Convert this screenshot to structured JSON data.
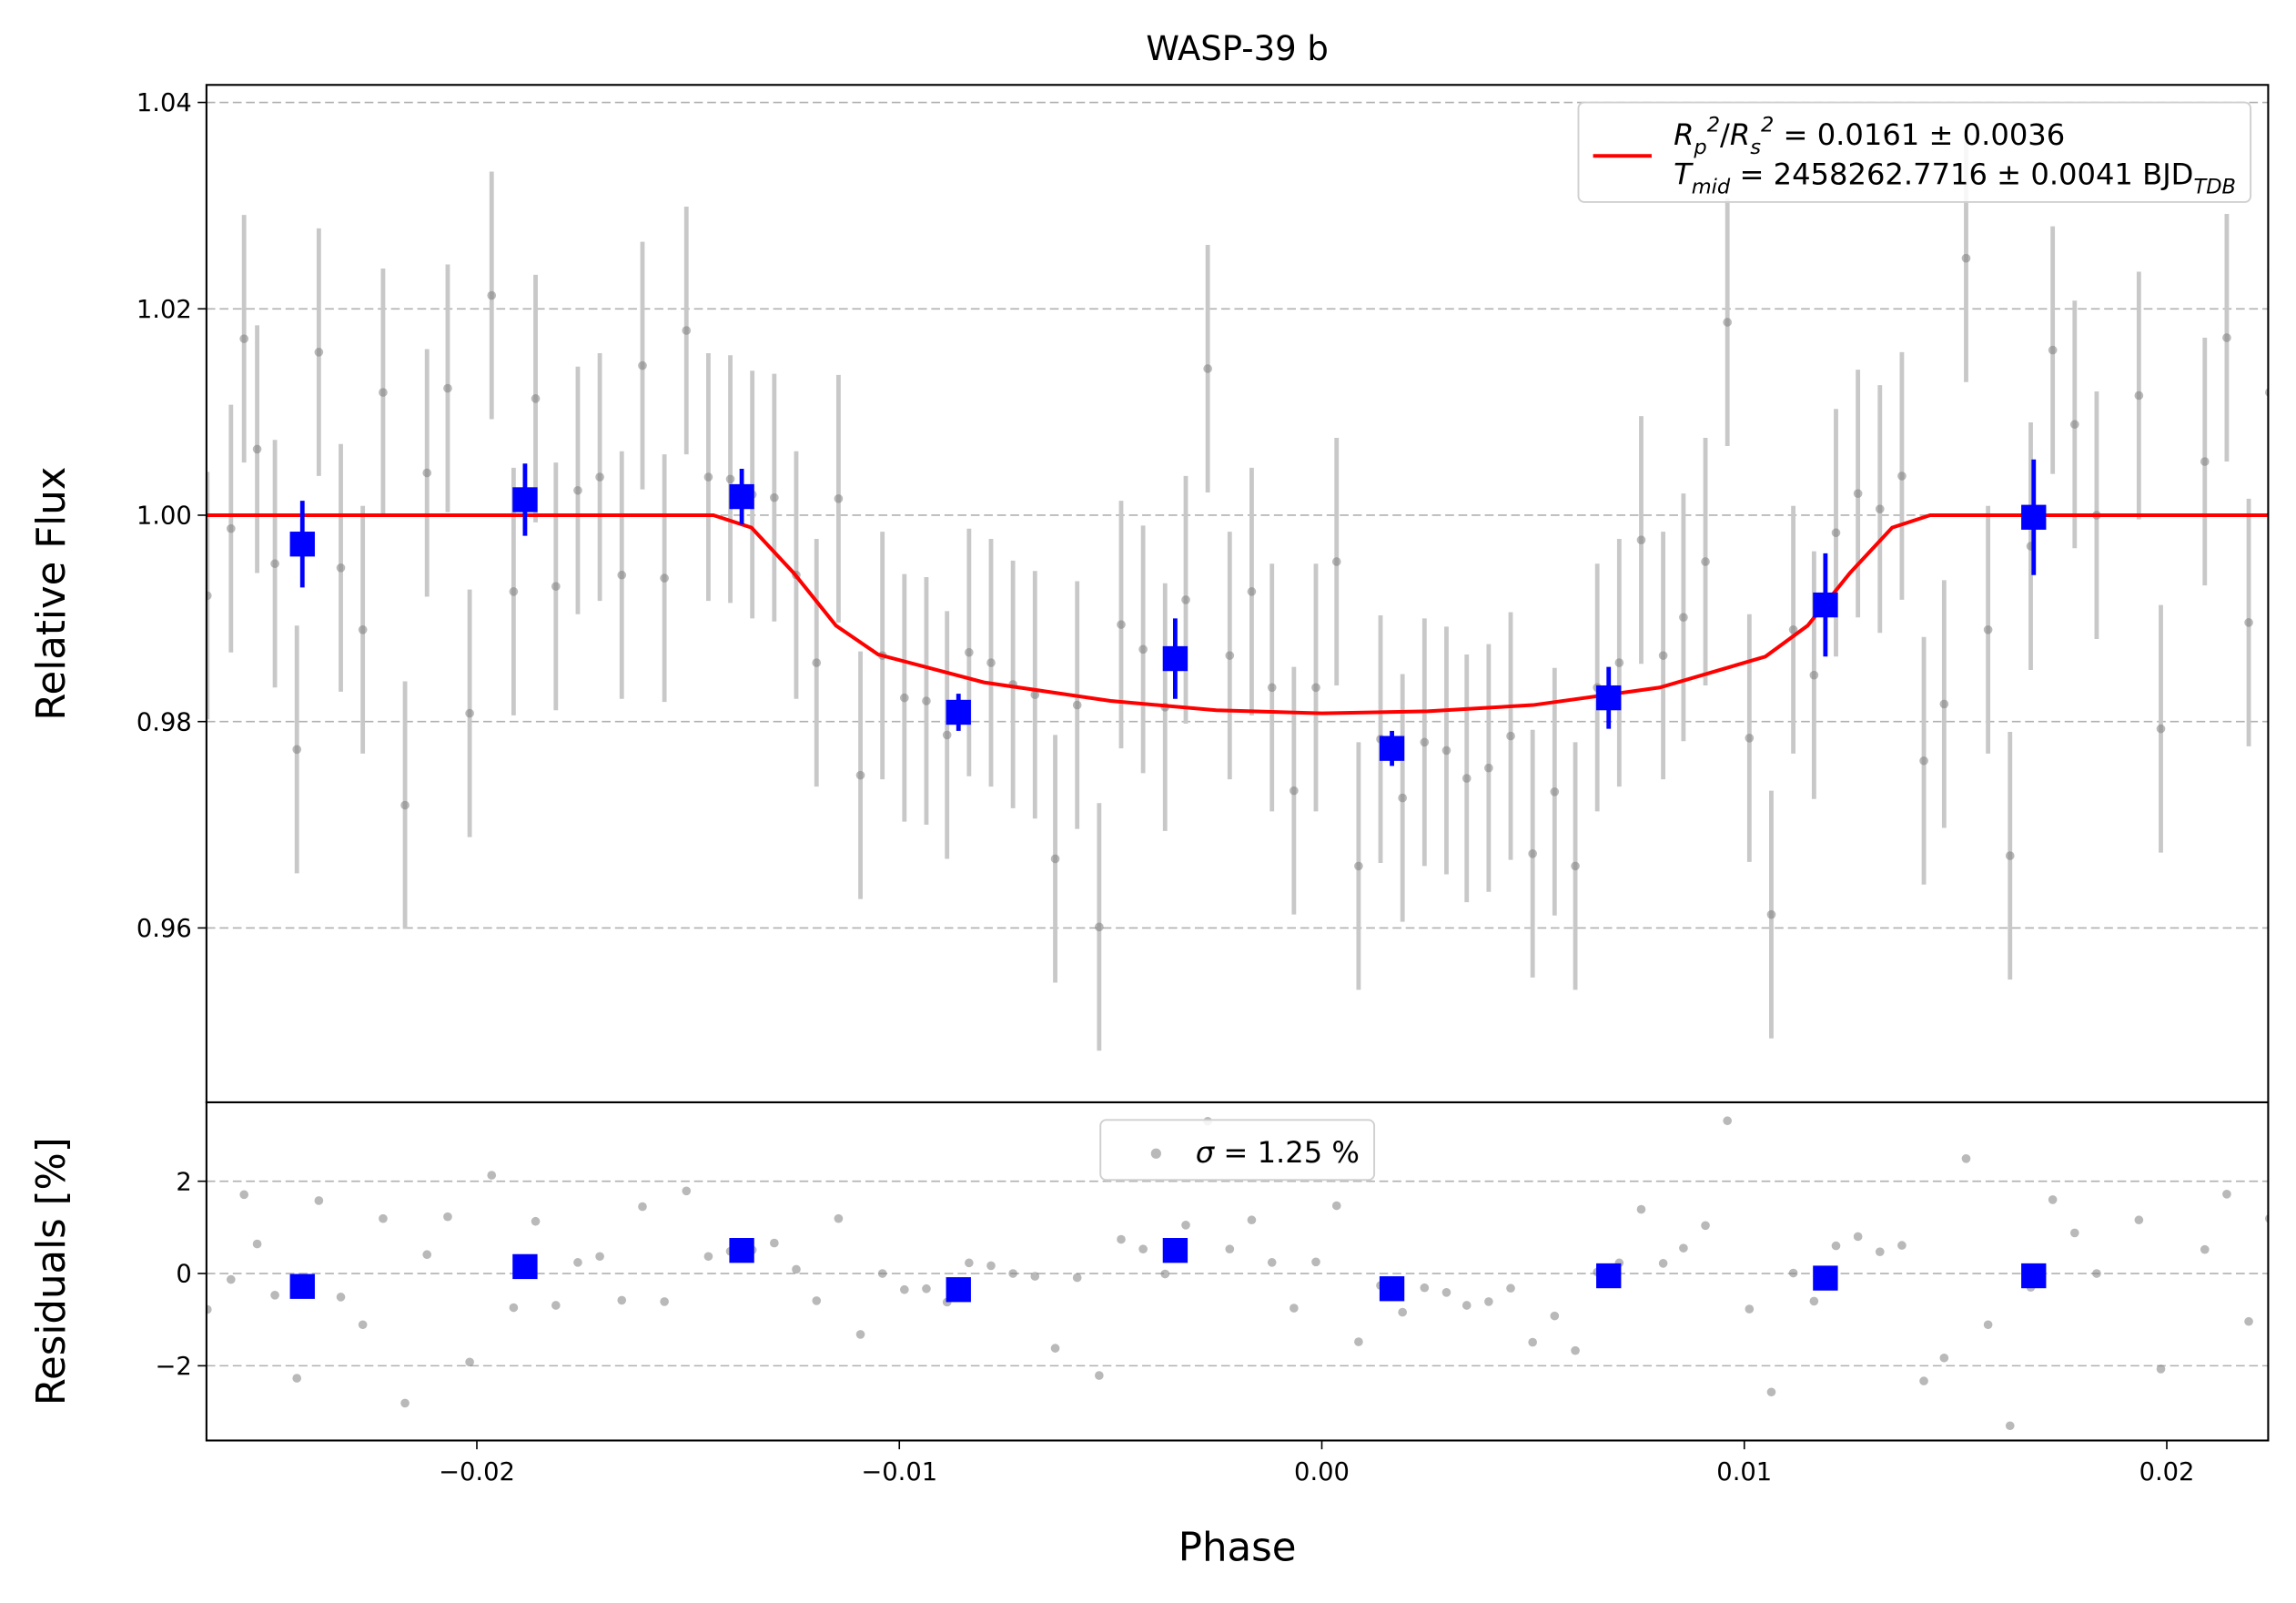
{
  "chart_data": [
    {
      "type": "scatter",
      "title": "WASP-39 b",
      "y_label": "Relative Flux",
      "xlim": [
        -0.0264,
        0.0224
      ],
      "ylim": [
        0.9431,
        1.0417
      ],
      "yticks": [
        0.96,
        0.98,
        {
          "value": 1,
          "label": "1.00"
        },
        1.02,
        1.04
      ],
      "grid": true,
      "legend": "upper right",
      "series": [
        {
          "style": "errorbar",
          "marker": "circle",
          "color": "#808080",
          "errcolor": "#c8c8c8",
          "x": [
            -0.02638,
            -0.02582,
            -0.02551,
            -0.0252,
            -0.02478,
            -0.02426,
            -0.02374,
            -0.02322,
            -0.0227,
            -0.02222,
            -0.0217,
            -0.02118,
            -0.02069,
            -0.02017,
            -0.01965,
            -0.01913,
            -0.01861,
            -0.01813,
            -0.01761,
            -0.01709,
            -0.01657,
            -0.01608,
            -0.01556,
            -0.01504,
            -0.01452,
            -0.014,
            -0.01348,
            -0.01296,
            -0.01244,
            -0.01196,
            -0.01144,
            -0.01092,
            -0.0104,
            -0.00988,
            -0.00936,
            -0.00887,
            -0.00835,
            -0.00783,
            -0.00731,
            -0.00679,
            -0.00631,
            -0.00579,
            -0.00527,
            -0.00475,
            -0.00423,
            -0.00371,
            -0.00322,
            -0.0027,
            -0.00218,
            -0.00166,
            -0.00118,
            -0.00066,
            -0.00014,
            0.00035,
            0.00087,
            0.00139,
            0.00191,
            0.00243,
            0.00295,
            0.00343,
            0.00395,
            0.00447,
            0.00499,
            0.00551,
            0.006,
            0.00652,
            0.00704,
            0.00756,
            0.00808,
            0.00856,
            0.00908,
            0.0096,
            0.01012,
            0.01064,
            0.01116,
            0.01165,
            0.01217,
            0.01269,
            0.01321,
            0.01373,
            0.01425,
            0.01473,
            0.01525,
            0.01577,
            0.01629,
            0.01678,
            0.0173,
            0.01782,
            0.01834,
            0.01934,
            0.01986,
            0.0209,
            0.02142,
            0.02194,
            0.02243
          ],
          "values": [
            0.9922,
            0.9987,
            1.0171,
            1.0064,
            0.9953,
            0.9773,
            1.0158,
            0.9949,
            0.9889,
            1.0119,
            0.9719,
            1.0041,
            1.0123,
            0.9808,
            1.0213,
            0.9926,
            1.0113,
            0.9931,
            1.0024,
            1.0037,
            0.9942,
            1.0145,
            0.9939,
            1.0179,
            1.0037,
            1.0035,
            1.002,
            1.0017,
            0.9942,
            0.9857,
            1.0016,
            0.9748,
            0.9864,
            0.9823,
            0.982,
            0.9787,
            0.9867,
            0.9857,
            0.9836,
            0.9826,
            0.9667,
            0.9816,
            0.9601,
            0.9894,
            0.987,
            0.9814,
            0.9918,
            1.0142,
            0.9864,
            0.9926,
            0.9833,
            0.9733,
            0.9833,
            0.9955,
            0.966,
            0.9783,
            0.9726,
            0.978,
            0.9772,
            0.9745,
            0.9755,
            0.9786,
            0.9672,
            0.9732,
            0.966,
            0.9833,
            0.9857,
            0.9976,
            0.9864,
            0.9901,
            0.9955,
            1.0187,
            0.9784,
            0.9613,
            0.9889,
            0.9845,
            0.9983,
            1.0021,
            1.0006,
            1.0038,
            0.9762,
            0.9817,
            1.0249,
            0.9889,
            0.967,
            0.997,
            1.016,
            1.0088,
            1.0,
            1.0116,
            0.9793,
            1.0052,
            1.0172,
            0.9896,
            1.0119
          ],
          "yerr": 0.012
        },
        {
          "style": "line",
          "color": "#ff0000",
          "name": [
            [
              {
                "text": "R",
                "kind": "italic"
              },
              {
                "text": "p",
                "kind": "sub"
              },
              {
                "text": "2",
                "kind": "sup"
              },
              {
                "text": "/",
                "kind": "plain"
              },
              {
                "text": "R",
                "kind": "italic"
              },
              {
                "text": "s",
                "kind": "sub"
              },
              {
                "text": "2",
                "kind": "sup"
              },
              {
                "text": " = 0.0161 ± 0.0036",
                "kind": "plain"
              }
            ],
            [
              {
                "text": "T",
                "kind": "italic"
              },
              {
                "text": "mid",
                "kind": "sub"
              },
              {
                "text": " = 2458262.7716 ± 0.0041 BJD",
                "kind": "plain"
              },
              {
                "text": "TDB",
                "kind": "sub"
              }
            ]
          ],
          "x": [
            -0.0264,
            -0.0144,
            -0.0135,
            -0.0125,
            -0.0115,
            -0.0105,
            -0.008,
            -0.005,
            -0.0025,
            0,
            0.0025,
            0.005,
            0.008,
            0.0105,
            0.0115,
            0.0125,
            0.0135,
            0.0144,
            0.0224
          ],
          "values": [
            1,
            1,
            0.9988,
            0.9944,
            0.9893,
            0.9865,
            0.9838,
            0.982,
            0.9811,
            0.9808,
            0.981,
            0.9816,
            0.9833,
            0.9863,
            0.9893,
            0.9944,
            0.9988,
            1,
            1
          ]
        },
        {
          "style": "errorbar",
          "marker": "square",
          "color": "#0000ff",
          "errcolor": "#0000ff",
          "x": [
            -0.02413,
            -0.01886,
            -0.01373,
            -0.0086,
            -0.00347,
            0.00166,
            0.00679,
            0.01192,
            0.01685
          ],
          "values": [
            0.9972,
            1.0015,
            1.0018,
            0.9809,
            0.9861,
            0.9774,
            0.9823,
            0.9913,
            0.9998
          ],
          "yerr": [
            0.0042,
            0.0035,
            0.0027,
            0.0018,
            0.0039,
            0.0017,
            0.003,
            0.005,
            0.0056
          ]
        }
      ]
    },
    {
      "type": "scatter",
      "x_label": "Phase",
      "y_label": "Residuals [%]",
      "xlim": [
        -0.0264,
        0.0224
      ],
      "ylim": [
        -3.62,
        3.71
      ],
      "xticks": [
        {
          "value": -0.02,
          "label": "−0.02"
        },
        {
          "value": -0.01,
          "label": "−0.01"
        },
        {
          "value": 0,
          "label": "0.00"
        },
        0.01,
        0.02
      ],
      "yticks": [
        {
          "value": -2,
          "label": "−2"
        },
        0,
        2
      ],
      "grid": true,
      "legend": "upper center",
      "series": [
        {
          "style": "errorbar",
          "marker": "circle",
          "color": "#808080",
          "name": [
            [
              {
                "text": "σ",
                "kind": "italic"
              },
              {
                "text": " = 1.25 %",
                "kind": "plain"
              }
            ]
          ],
          "x": [
            -0.02638,
            -0.02582,
            -0.02551,
            -0.0252,
            -0.02478,
            -0.02426,
            -0.02374,
            -0.02322,
            -0.0227,
            -0.02222,
            -0.0217,
            -0.02118,
            -0.02069,
            -0.02017,
            -0.01965,
            -0.01913,
            -0.01861,
            -0.01813,
            -0.01761,
            -0.01709,
            -0.01657,
            -0.01608,
            -0.01556,
            -0.01504,
            -0.01452,
            -0.014,
            -0.01348,
            -0.01296,
            -0.01244,
            -0.01196,
            -0.01144,
            -0.01092,
            -0.0104,
            -0.00988,
            -0.00936,
            -0.00887,
            -0.00835,
            -0.00783,
            -0.00731,
            -0.00679,
            -0.00631,
            -0.00579,
            -0.00527,
            -0.00475,
            -0.00423,
            -0.00371,
            -0.00322,
            -0.0027,
            -0.00218,
            -0.00166,
            -0.00118,
            -0.00066,
            -0.00014,
            0.00035,
            0.00087,
            0.00139,
            0.00191,
            0.00243,
            0.00295,
            0.00343,
            0.00395,
            0.00447,
            0.00499,
            0.00551,
            0.006,
            0.00652,
            0.00704,
            0.00756,
            0.00808,
            0.00856,
            0.00908,
            0.0096,
            0.01012,
            0.01064,
            0.01116,
            0.01165,
            0.01217,
            0.01269,
            0.01321,
            0.01373,
            0.01425,
            0.01473,
            0.01525,
            0.01577,
            0.01629,
            0.01678,
            0.0173,
            0.01782,
            0.01834,
            0.01934,
            0.01986,
            0.0209,
            0.02142,
            0.02194,
            0.02243
          ],
          "values": [
            -0.78,
            -0.13,
            1.71,
            0.64,
            -0.47,
            -2.27,
            1.58,
            -0.51,
            -1.11,
            1.19,
            -2.81,
            0.41,
            1.23,
            -1.92,
            2.13,
            -0.74,
            1.13,
            -0.69,
            0.24,
            0.37,
            -0.58,
            1.45,
            -0.61,
            1.79,
            0.37,
            0.48,
            0.51,
            0.66,
            0.09,
            -0.59,
            1.19,
            -1.32,
            0,
            -0.35,
            -0.33,
            -0.62,
            0.23,
            0.17,
            0,
            -0.06,
            -1.62,
            -0.09,
            -2.21,
            0.74,
            0.53,
            -0.01,
            1.05,
            3.3,
            0.53,
            1.16,
            0.24,
            -0.75,
            0.25,
            1.47,
            -1.48,
            -0.26,
            -0.84,
            -0.31,
            -0.41,
            -0.69,
            -0.61,
            -0.32,
            -1.49,
            -0.92,
            -1.67,
            0.03,
            0.23,
            1.39,
            0.22,
            0.55,
            1.04,
            3.31,
            -0.77,
            -2.57,
            0.01,
            -0.6,
            0.6,
            0.8,
            0.47,
            0.61,
            -2.33,
            -1.83,
            2.49,
            -1.11,
            -3.3,
            -0.3,
            1.6,
            0.88,
            0,
            1.16,
            -2.07,
            0.52,
            1.72,
            -1.04,
            1.19
          ]
        },
        {
          "style": "errorbar",
          "marker": "square",
          "color": "#0000ff",
          "x": [
            -0.02413,
            -0.01886,
            -0.01373,
            -0.0086,
            -0.00347,
            0.00166,
            0.00679,
            0.01192,
            0.01685
          ],
          "values": [
            -0.28,
            0.15,
            0.5,
            -0.35,
            0.5,
            -0.33,
            -0.05,
            -0.1,
            -0.05
          ]
        }
      ]
    }
  ]
}
